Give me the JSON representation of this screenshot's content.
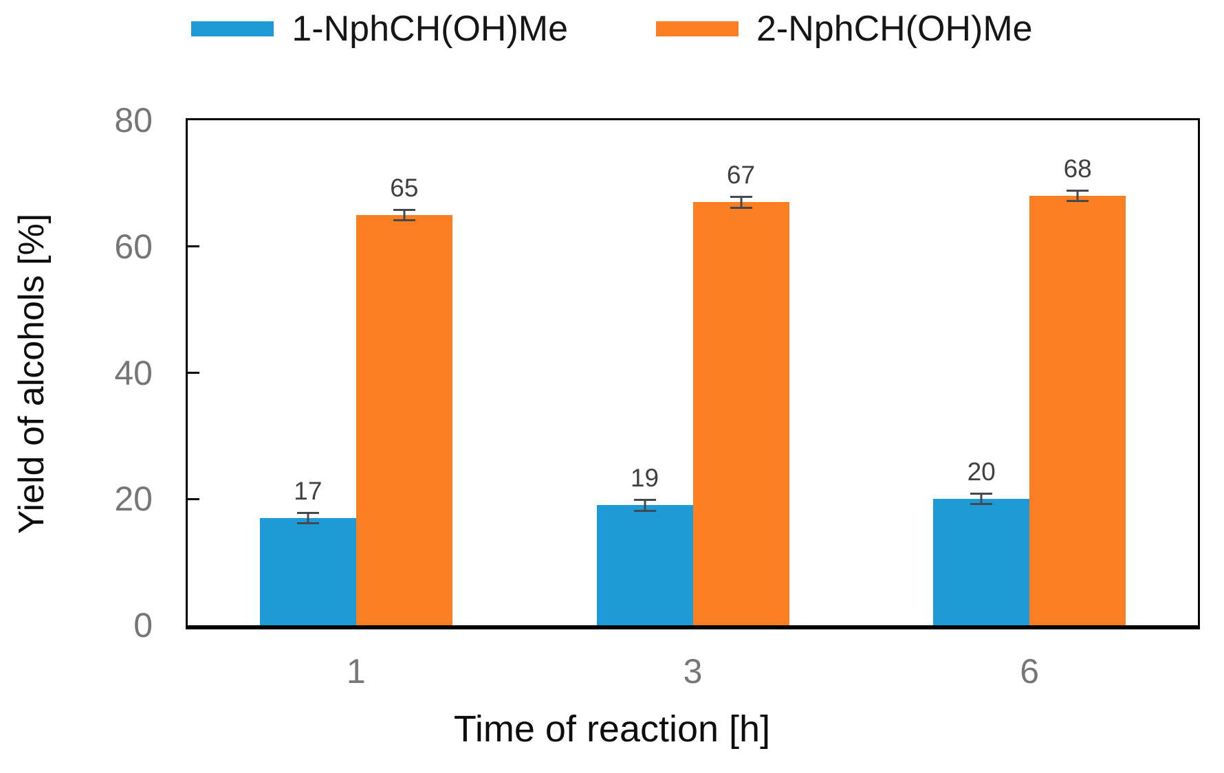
{
  "chart_data": {
    "type": "bar",
    "title": "",
    "categories": [
      "1",
      "3",
      "6"
    ],
    "series": [
      {
        "name": "1-NphCH(OH)Me",
        "color": "#1E9AD6",
        "values": [
          17,
          19,
          20
        ],
        "errors": [
          1,
          1,
          1
        ]
      },
      {
        "name": "2-NphCH(OH)Me",
        "color": "#FB7E23",
        "values": [
          65,
          67,
          68
        ],
        "errors": [
          1,
          1,
          1
        ]
      }
    ],
    "xlabel": "Time of reaction [h]",
    "ylabel": "Yield of alcohols [%]",
    "ylim": [
      0,
      80
    ],
    "yticks": [
      0,
      20,
      40,
      60,
      80
    ],
    "grid": false,
    "legend_position": "top",
    "colors": {
      "error_bar": "#45484d",
      "data_label": "#404040",
      "tick_label": "#767676",
      "axis_title": "#0d0d0d",
      "axis_line": "#000000",
      "background": "#ffffff"
    }
  }
}
